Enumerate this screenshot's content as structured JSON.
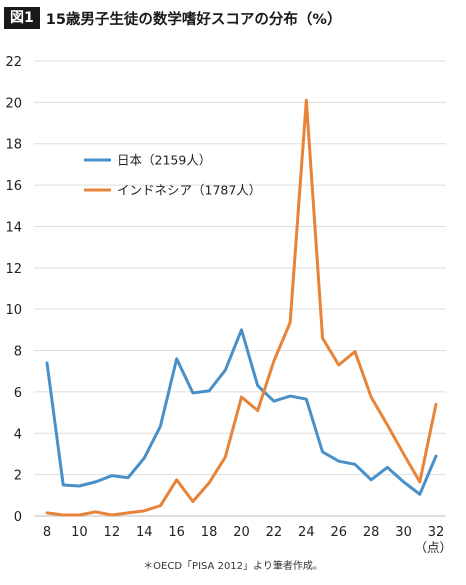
{
  "header": {
    "figure_label": "図1",
    "title": "15歳男子生徒の数学嗜好スコアの分布（%）"
  },
  "source_note": "＊OECD「PISA 2012」より筆者作成。",
  "chart_data": {
    "type": "line",
    "title": "15歳男子生徒の数学嗜好スコアの分布（%）",
    "xlabel": "（点）",
    "ylabel": "",
    "x": [
      8,
      9,
      10,
      11,
      12,
      13,
      14,
      15,
      16,
      17,
      18,
      19,
      20,
      21,
      22,
      23,
      24,
      25,
      26,
      27,
      28,
      29,
      30,
      31,
      32
    ],
    "xlim": [
      8,
      32
    ],
    "ylim": [
      0,
      22
    ],
    "x_ticks": [
      8,
      10,
      12,
      14,
      16,
      18,
      20,
      22,
      24,
      26,
      28,
      30,
      32
    ],
    "y_ticks": [
      0,
      2,
      4,
      6,
      8,
      10,
      12,
      14,
      16,
      18,
      20,
      22
    ],
    "grid": "horizontal",
    "legend_position": "top-left",
    "series": [
      {
        "name": "日本（2159人）",
        "color": "#4a90c8",
        "values": [
          7.4,
          1.5,
          1.45,
          1.65,
          1.95,
          1.85,
          2.8,
          4.35,
          7.6,
          5.95,
          6.05,
          7.05,
          9.0,
          6.3,
          5.55,
          5.8,
          5.65,
          3.1,
          2.65,
          2.5,
          1.75,
          2.35,
          1.65,
          1.05,
          2.9
        ]
      },
      {
        "name": "インドネシア（1787人）",
        "color": "#e8833a",
        "values": [
          0.15,
          0.05,
          0.05,
          0.2,
          0.05,
          0.15,
          0.25,
          0.5,
          1.75,
          0.7,
          1.6,
          2.85,
          5.75,
          5.1,
          7.5,
          9.35,
          20.1,
          8.6,
          7.3,
          7.95,
          5.75,
          4.4,
          3.0,
          1.65,
          5.4
        ]
      }
    ]
  }
}
